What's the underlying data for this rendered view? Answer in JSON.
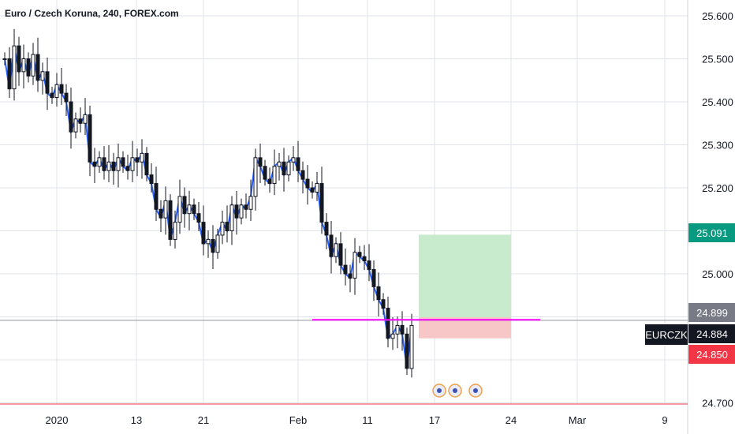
{
  "header": {
    "title": "Euro / Czech Koruna, 240, FOREX.com"
  },
  "chart_data": {
    "type": "candlestick",
    "title": "Euro / Czech Koruna, 240, FOREX.com",
    "symbol": "EURCZK",
    "ylim": [
      24.69,
      25.65
    ],
    "y_ticks": [
      "25.600",
      "25.500",
      "25.400",
      "25.300",
      "25.200",
      "25.000",
      "24.700"
    ],
    "x_ticks": [
      "2020",
      "13",
      "21",
      "Feb",
      "11",
      "17",
      "24",
      "Mar",
      "9"
    ],
    "series": [
      {
        "name": "EURCZK",
        "close_path": [
          [
            0,
            25.5
          ],
          [
            6,
            25.43
          ],
          [
            12,
            25.53
          ],
          [
            18,
            25.47
          ],
          [
            24,
            25.5
          ],
          [
            30,
            25.46
          ],
          [
            36,
            25.51
          ],
          [
            42,
            25.45
          ],
          [
            48,
            25.47
          ],
          [
            54,
            25.42
          ],
          [
            60,
            25.41
          ],
          [
            66,
            25.44
          ],
          [
            72,
            25.42
          ],
          [
            78,
            25.4
          ],
          [
            84,
            25.33
          ],
          [
            90,
            25.36
          ],
          [
            96,
            25.35
          ],
          [
            102,
            25.37
          ],
          [
            108,
            25.26
          ],
          [
            114,
            25.25
          ],
          [
            120,
            25.27
          ],
          [
            126,
            25.24
          ],
          [
            132,
            25.26
          ],
          [
            138,
            25.24
          ],
          [
            144,
            25.27
          ],
          [
            150,
            25.25
          ],
          [
            156,
            25.24
          ],
          [
            162,
            25.27
          ],
          [
            168,
            25.26
          ],
          [
            174,
            25.28
          ],
          [
            180,
            25.23
          ],
          [
            186,
            25.21
          ],
          [
            192,
            25.15
          ],
          [
            198,
            25.13
          ],
          [
            204,
            25.17
          ],
          [
            210,
            25.08
          ],
          [
            216,
            25.12
          ],
          [
            222,
            25.18
          ],
          [
            228,
            25.14
          ],
          [
            234,
            25.16
          ],
          [
            240,
            25.14
          ],
          [
            246,
            25.12
          ],
          [
            252,
            25.07
          ],
          [
            258,
            25.08
          ],
          [
            264,
            25.05
          ],
          [
            270,
            25.09
          ],
          [
            276,
            25.12
          ],
          [
            282,
            25.1
          ],
          [
            288,
            25.16
          ],
          [
            294,
            25.13
          ],
          [
            300,
            25.16
          ],
          [
            306,
            25.15
          ],
          [
            312,
            25.18
          ],
          [
            318,
            25.27
          ],
          [
            324,
            25.25
          ],
          [
            330,
            25.22
          ],
          [
            336,
            25.21
          ],
          [
            342,
            25.25
          ],
          [
            348,
            25.26
          ],
          [
            354,
            25.23
          ],
          [
            360,
            25.26
          ],
          [
            366,
            25.27
          ],
          [
            372,
            25.24
          ],
          [
            378,
            25.22
          ],
          [
            384,
            25.2
          ],
          [
            390,
            25.19
          ],
          [
            396,
            25.21
          ],
          [
            402,
            25.12
          ],
          [
            408,
            25.09
          ],
          [
            414,
            25.04
          ],
          [
            420,
            25.07
          ],
          [
            426,
            25.02
          ],
          [
            432,
            25.0
          ],
          [
            438,
            24.99
          ],
          [
            444,
            25.05
          ],
          [
            450,
            25.04
          ],
          [
            456,
            25.03
          ],
          [
            462,
            25.01
          ],
          [
            468,
            24.97
          ],
          [
            474,
            24.94
          ],
          [
            480,
            24.92
          ],
          [
            486,
            24.85
          ],
          [
            492,
            24.86
          ],
          [
            498,
            24.88
          ],
          [
            504,
            24.86
          ],
          [
            510,
            24.78
          ],
          [
            516,
            24.88
          ]
        ]
      }
    ],
    "horizontal_line": {
      "value": 24.884,
      "color": "#ff00ff"
    },
    "position": {
      "take_profit": 25.091,
      "entry": 24.899,
      "stop_loss": 24.85
    },
    "price_labels": [
      {
        "text": "25.091",
        "bg": "#089981",
        "color": "#ffffff"
      },
      {
        "text": "24.899",
        "bg": "#787b86",
        "color": "#ffffff"
      },
      {
        "text": "24.884",
        "bg": "#131722",
        "color": "#ffffff"
      },
      {
        "text": "24.850",
        "bg": "#f23645",
        "color": "#ffffff"
      }
    ],
    "grid": true
  },
  "colors": {
    "tp_zone": "#c8ebcd",
    "sl_zone": "#f7c7c7",
    "candle": "#131722",
    "line": "#2962ff",
    "axis_text": "#131722",
    "grid": "#e0e3eb"
  },
  "icons": [
    "event-icon",
    "event-icon",
    "event-icon"
  ]
}
